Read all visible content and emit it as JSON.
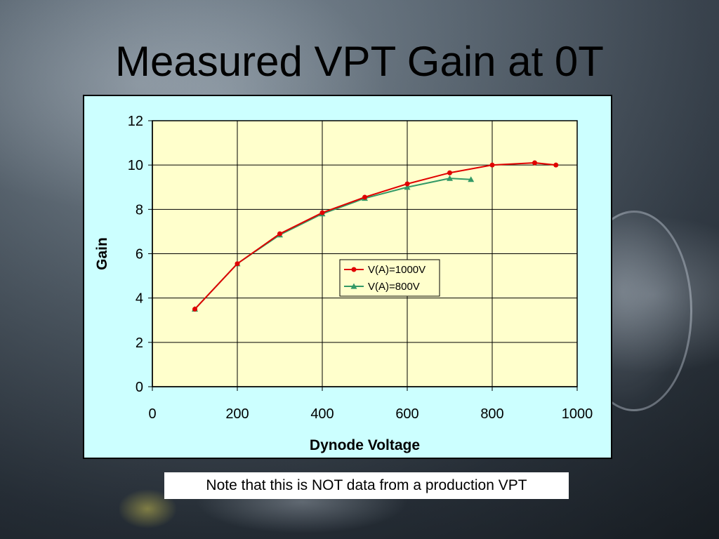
{
  "slide": {
    "title": "Measured VPT Gain at 0T",
    "note": "Note that this is NOT data from a production VPT"
  },
  "chart_data": {
    "type": "line",
    "title": "",
    "xlabel": "Dynode Voltage",
    "ylabel": "Gain",
    "xlim": [
      0,
      1000
    ],
    "ylim": [
      0,
      12
    ],
    "xticks": [
      0,
      200,
      400,
      600,
      800,
      1000
    ],
    "yticks": [
      0,
      2,
      4,
      6,
      8,
      10,
      12
    ],
    "grid": true,
    "legend": "center-right",
    "plot_background": "#ffffcc",
    "series": [
      {
        "name": "V(A)=1000V",
        "color": "#e00000",
        "marker": "circle",
        "points": [
          [
            100,
            3.5
          ],
          [
            200,
            5.55
          ],
          [
            300,
            6.9
          ],
          [
            400,
            7.85
          ],
          [
            500,
            8.55
          ],
          [
            600,
            9.15
          ],
          [
            700,
            9.65
          ],
          [
            800,
            10.0
          ],
          [
            900,
            10.1
          ],
          [
            950,
            10.0
          ]
        ]
      },
      {
        "name": "V(A)=800V",
        "color": "#339966",
        "marker": "triangle",
        "points": [
          [
            100,
            3.5
          ],
          [
            200,
            5.55
          ],
          [
            300,
            6.85
          ],
          [
            400,
            7.8
          ],
          [
            500,
            8.5
          ],
          [
            600,
            9.0
          ],
          [
            700,
            9.4
          ],
          [
            750,
            9.35
          ]
        ]
      }
    ]
  }
}
